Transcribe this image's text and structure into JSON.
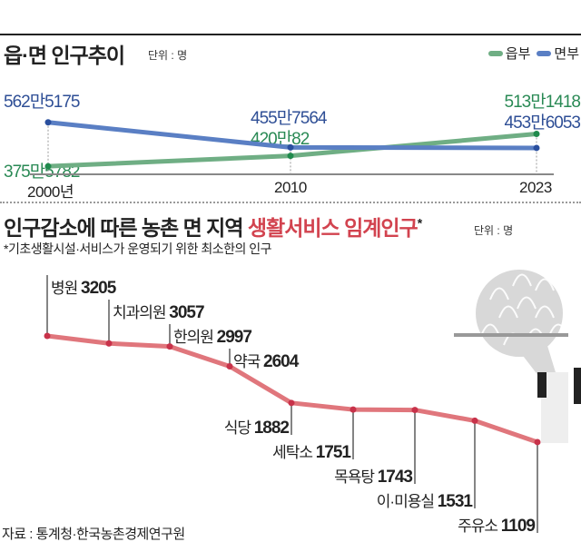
{
  "chart_data": [
    {
      "type": "line",
      "title": "읍·면 인구추이",
      "unit": "단위 : 명",
      "x": [
        "2000년",
        "2010",
        "2023"
      ],
      "series": [
        {
          "name": "읍부",
          "color": "#6fae84",
          "values": [
            3755782,
            4200082,
            5131418
          ],
          "labels": [
            "375만5782",
            "420만82",
            "513만1418"
          ]
        },
        {
          "name": "면부",
          "color": "#5a7fc4",
          "values": [
            5625175,
            4557564,
            4536053
          ],
          "labels": [
            "562만5175",
            "455만7564",
            "453만6053"
          ]
        }
      ]
    },
    {
      "type": "line",
      "title_main": "인구감소에 따른 농촌 면 지역 ",
      "title_highlight": "생활서비스 임계인구",
      "title_star": "*",
      "unit": "단위 : 명",
      "note": "*기초생활시설·서비스가 운영되기 위한 최소한의 인구",
      "categories": [
        "병원",
        "치과의원",
        "한의원",
        "약국",
        "식당",
        "세탁소",
        "목욕탕",
        "이·미용실",
        "주유소"
      ],
      "values": [
        3205,
        3057,
        2997,
        2604,
        1882,
        1751,
        1743,
        1531,
        1109
      ],
      "value_labels": [
        "3205",
        "3057",
        "2997",
        "2604",
        "1882",
        "1751",
        "1743",
        "1531",
        "1109"
      ],
      "color": "#e0767c"
    }
  ],
  "source": "자료 : 통계청·한국농촌경제연구원"
}
